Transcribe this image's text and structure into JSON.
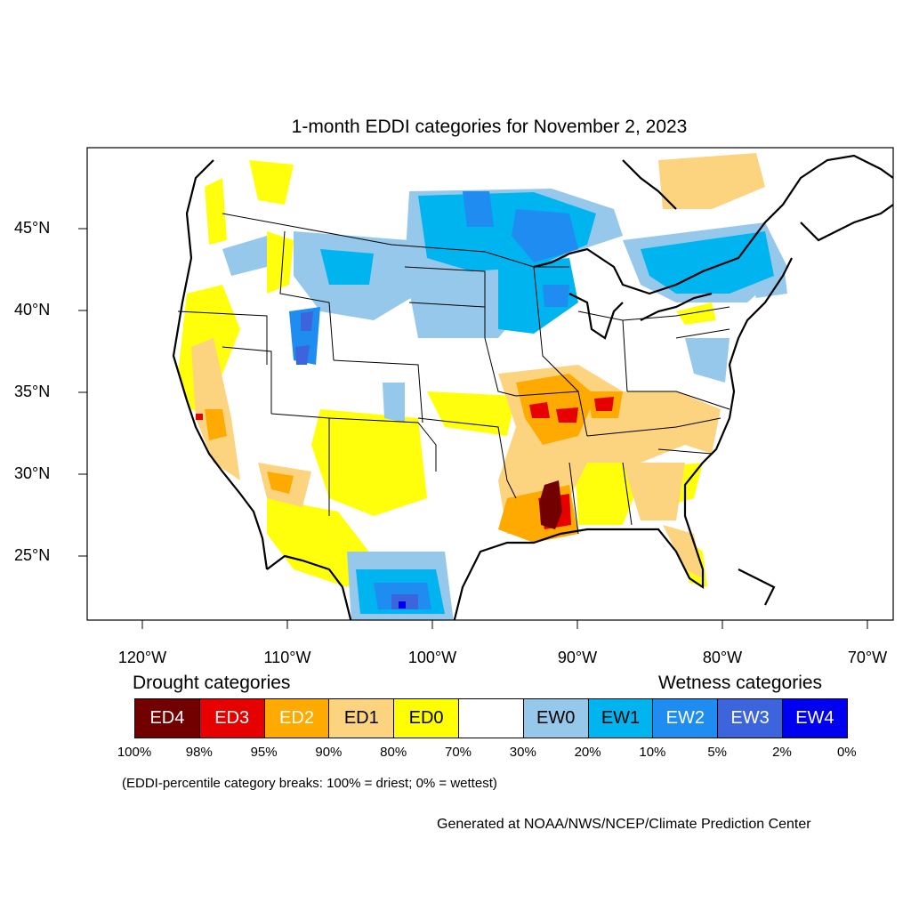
{
  "title": "1-month EDDI categories for November 2, 2023",
  "axes": {
    "lat_labels": [
      "45°N",
      "40°N",
      "35°N",
      "30°N",
      "25°N"
    ],
    "lon_labels": [
      "120°W",
      "110°W",
      "100°W",
      "90°W",
      "80°W",
      "70°W"
    ]
  },
  "legend": {
    "drought_heading": "Drought categories",
    "wetness_heading": "Wetness categories",
    "categories": [
      {
        "label": "ED4",
        "color": "#730000",
        "text_color": "#ffffff"
      },
      {
        "label": "ED3",
        "color": "#e60000",
        "text_color": "#ffffff"
      },
      {
        "label": "ED2",
        "color": "#ffaa00",
        "text_color": "#ffffff"
      },
      {
        "label": "ED1",
        "color": "#fcd37f",
        "text_color": "#000000"
      },
      {
        "label": "ED0",
        "color": "#ffff00",
        "text_color": "#000000"
      },
      {
        "label": "",
        "color": "#ffffff",
        "text_color": "#000000"
      },
      {
        "label": "EW0",
        "color": "#96c8eb",
        "text_color": "#000000"
      },
      {
        "label": "EW1",
        "color": "#00b4f0",
        "text_color": "#000000"
      },
      {
        "label": "EW2",
        "color": "#1e8cf0",
        "text_color": "#ffffff"
      },
      {
        "label": "EW3",
        "color": "#3c64dc",
        "text_color": "#ffffff"
      },
      {
        "label": "EW4",
        "color": "#0000f0",
        "text_color": "#ffffff"
      }
    ],
    "breaks": [
      "100%",
      "98%",
      "95%",
      "90%",
      "80%",
      "70%",
      "30%",
      "20%",
      "10%",
      "5%",
      "2%",
      "0%"
    ]
  },
  "note": "(EDDI-percentile category breaks: 100% = driest; 0% = wettest)",
  "credit": "Generated at NOAA/NWS/NCEP/Climate Prediction Center"
}
